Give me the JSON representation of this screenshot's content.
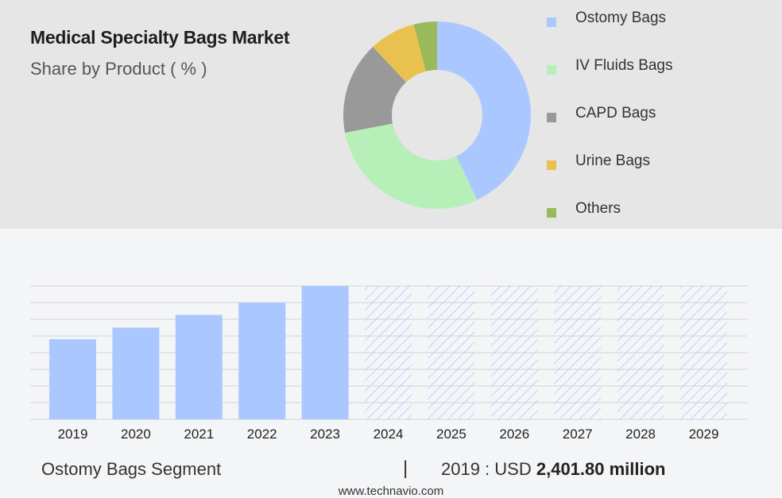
{
  "header": {
    "title": "Medical Specialty Bags Market",
    "subtitle": "Share by Product ( % )"
  },
  "footer": {
    "segment": "Ostomy Bags Segment",
    "divider": "|",
    "year_label": "2019 : USD",
    "value": "2,401.80 million",
    "source": "www.technavio.com"
  },
  "colors": {
    "bar": "#aac8ff",
    "hatch": "#aac8ff",
    "grid": "#d4d4d4"
  },
  "chart_data": [
    {
      "type": "pie",
      "subtype": "donut",
      "title": "Medical Specialty Bags Market",
      "subtitle": "Share by Product ( % )",
      "legend_position": "right",
      "slices": [
        {
          "label": "Ostomy Bags",
          "value": 43,
          "color": "#aac8ff"
        },
        {
          "label": "IV Fluids Bags",
          "value": 29,
          "color": "#b6f0b8"
        },
        {
          "label": "CAPD Bags",
          "value": 16,
          "color": "#999999"
        },
        {
          "label": "Urine Bags",
          "value": 8,
          "color": "#e8c14e"
        },
        {
          "label": "Others",
          "value": 4,
          "color": "#99b95a"
        }
      ]
    },
    {
      "type": "bar",
      "categories": [
        "2019",
        "2020",
        "2021",
        "2022",
        "2023",
        "2024",
        "2025",
        "2026",
        "2027",
        "2028",
        "2029"
      ],
      "values": [
        2401.8,
        2751,
        3132,
        3500,
        4000,
        null,
        null,
        null,
        null,
        null,
        null
      ],
      "forecast": [
        false,
        false,
        false,
        false,
        false,
        true,
        true,
        true,
        true,
        true,
        true
      ],
      "ylim": [
        0,
        4000
      ],
      "grid": true,
      "y_axis_labels": false
    }
  ]
}
